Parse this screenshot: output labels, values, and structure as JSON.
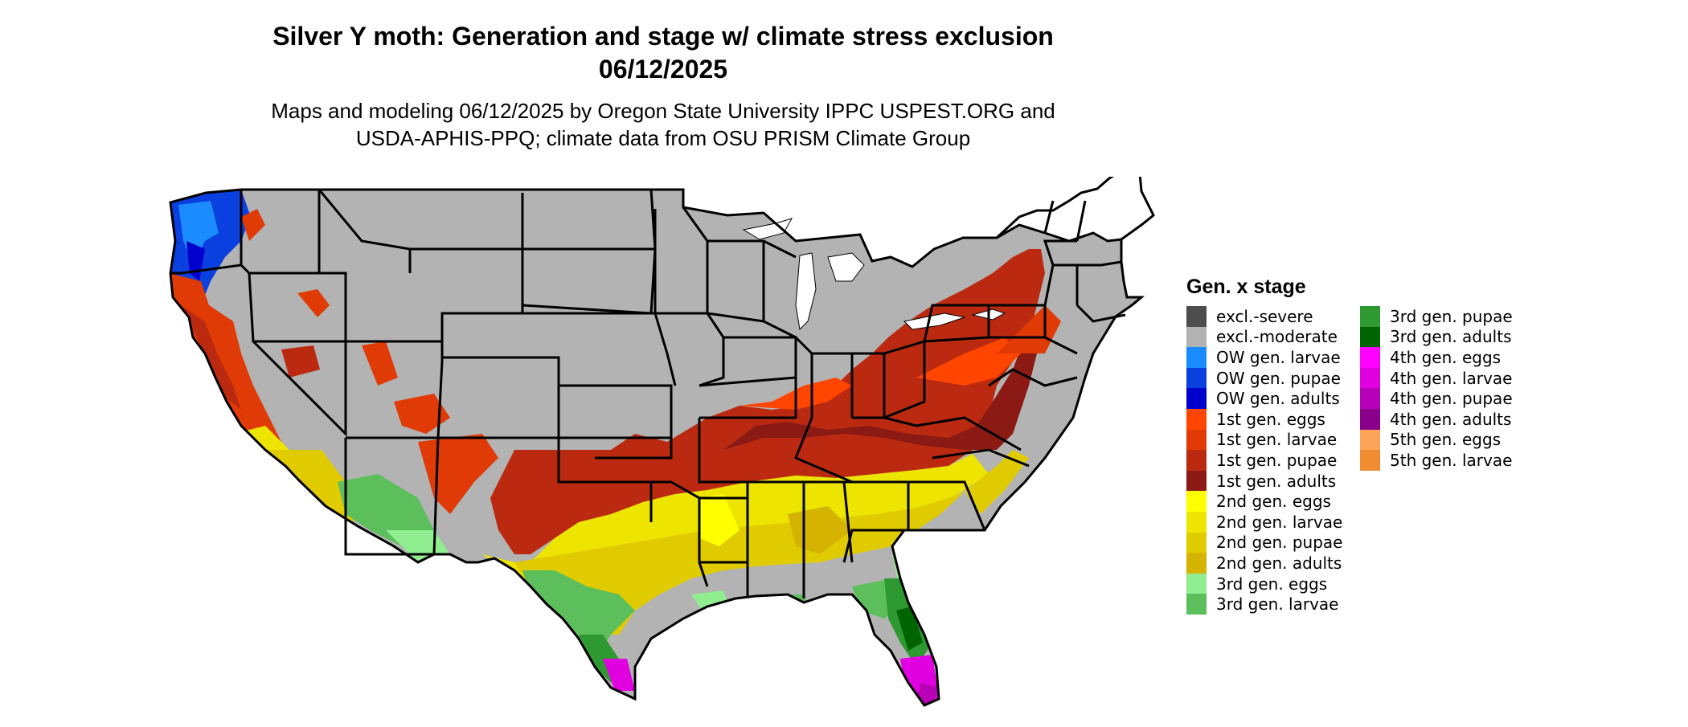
{
  "title": {
    "line1": "Silver Y moth: Generation and stage w/ climate stress exclusion",
    "line2": "06/12/2025"
  },
  "subtitle": {
    "line1": "Maps and modeling 06/12/2025 by Oregon State University IPPC USPEST.ORG and",
    "line2": "USDA-APHIS-PPQ; climate data from OSU PRISM Climate Group"
  },
  "legend": {
    "title": "Gen. x stage",
    "items": [
      {
        "label": "excl.-severe",
        "color": "#4d4d4d"
      },
      {
        "label": "excl.-moderate",
        "color": "#b3b3b3"
      },
      {
        "label": "OW gen. larvae",
        "color": "#1a8cff"
      },
      {
        "label": "OW gen. pupae",
        "color": "#0a3fe0"
      },
      {
        "label": "OW gen. adults",
        "color": "#0000cc"
      },
      {
        "label": "1st gen. eggs",
        "color": "#ff4500"
      },
      {
        "label": "1st gen. larvae",
        "color": "#e03a06"
      },
      {
        "label": "1st gen. pupae",
        "color": "#bb2a10"
      },
      {
        "label": "1st gen. adults",
        "color": "#8b1a14"
      },
      {
        "label": "2nd gen. eggs",
        "color": "#ffff00"
      },
      {
        "label": "2nd gen. larvae",
        "color": "#ede400"
      },
      {
        "label": "2nd gen. pupae",
        "color": "#e0cb00"
      },
      {
        "label": "2nd gen. adults",
        "color": "#d4b400"
      },
      {
        "label": "3rd gen. eggs",
        "color": "#90ee90"
      },
      {
        "label": "3rd gen. larvae",
        "color": "#5cbf5c"
      },
      {
        "label": "3rd gen. pupae",
        "color": "#2e9930"
      },
      {
        "label": "3rd gen. adults",
        "color": "#006400"
      },
      {
        "label": "4th gen. eggs",
        "color": "#ff00ff"
      },
      {
        "label": "4th gen. larvae",
        "color": "#e000e0"
      },
      {
        "label": "4th gen. pupae",
        "color": "#b800b8"
      },
      {
        "label": "4th gen. adults",
        "color": "#8b008b"
      },
      {
        "label": "5th gen. eggs",
        "color": "#ffa559"
      },
      {
        "label": "5th gen. larvae",
        "color": "#f08c32"
      }
    ]
  },
  "colors": {
    "state_border": "#000000",
    "great_lakes": "#ffffff"
  }
}
